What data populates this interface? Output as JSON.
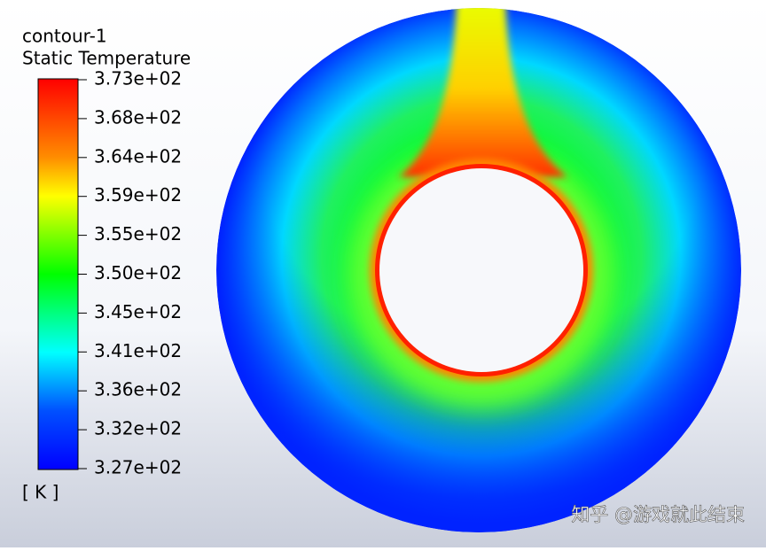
{
  "legend": {
    "title": "contour-1",
    "variable": "Static Temperature",
    "labels": [
      "3.73e+02",
      "3.68e+02",
      "3.64e+02",
      "3.59e+02",
      "3.55e+02",
      "3.50e+02",
      "3.45e+02",
      "3.41e+02",
      "3.36e+02",
      "3.32e+02",
      "3.27e+02"
    ],
    "unit": "[ K ]"
  },
  "watermark": "知乎 @游戏就此结束"
}
